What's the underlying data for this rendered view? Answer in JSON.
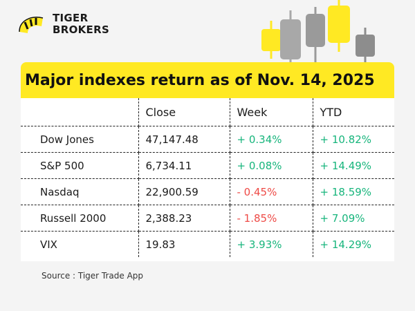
{
  "brand": {
    "line1": "TIGER",
    "line2": "BROKERS"
  },
  "title": "Major indexes return as of Nov. 14, 2025",
  "table": {
    "headers": [
      "",
      "Close",
      "Week",
      "YTD"
    ],
    "rows": [
      {
        "name": "Dow Jones",
        "close": "47,147.48",
        "week": "+ 0.34%",
        "ytd": "+ 10.82%"
      },
      {
        "name": "S&P 500",
        "close": "6,734.11",
        "week": "+ 0.08%",
        "ytd": "+ 14.49%"
      },
      {
        "name": "Nasdaq",
        "close": "22,900.59",
        "week": "- 0.45%",
        "ytd": "+ 18.59%"
      },
      {
        "name": "Russell 2000",
        "close": "2,388.23",
        "week": "- 1.85%",
        "ytd": "+ 7.09%"
      },
      {
        "name": "VIX",
        "close": "19.83",
        "week": "+ 3.93%",
        "ytd": "+ 14.29%"
      }
    ]
  },
  "source": "Source : Tiger Trade App",
  "colors": {
    "accent": "#ffe923",
    "positive": "#17b57c",
    "negative": "#ee4a46",
    "candle_gray": "#9b9b9b"
  }
}
